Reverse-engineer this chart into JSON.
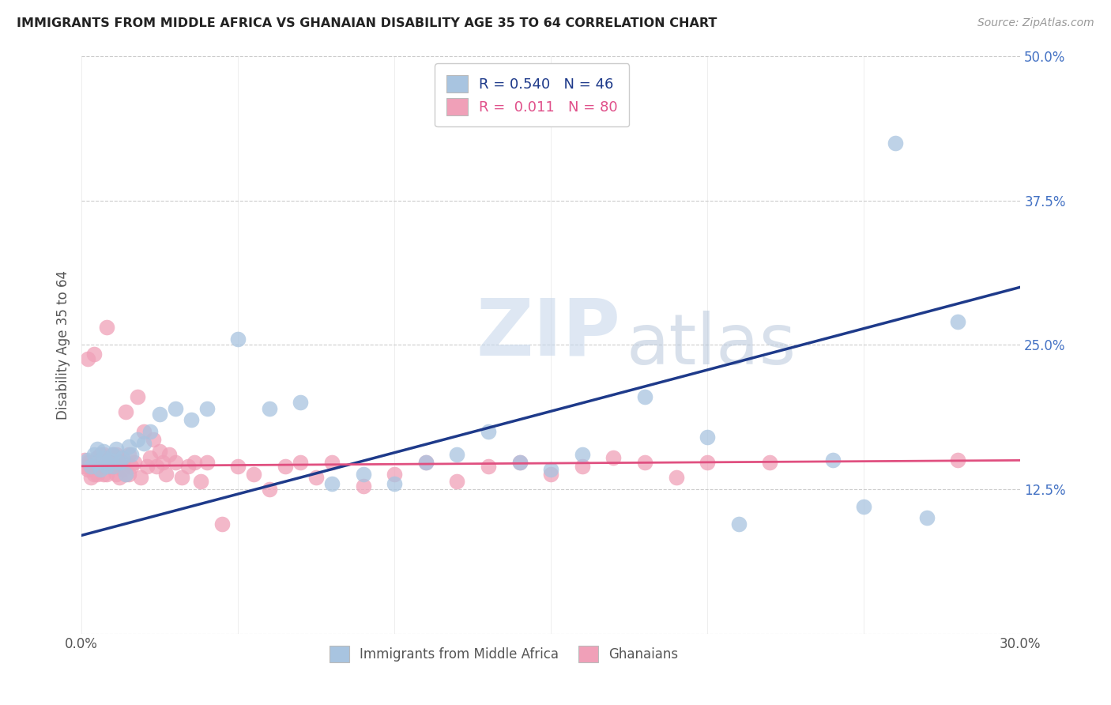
{
  "title": "IMMIGRANTS FROM MIDDLE AFRICA VS GHANAIAN DISABILITY AGE 35 TO 64 CORRELATION CHART",
  "source": "Source: ZipAtlas.com",
  "ylabel": "Disability Age 35 to 64",
  "xlim": [
    0.0,
    0.3
  ],
  "ylim": [
    0.0,
    0.5
  ],
  "xticks": [
    0.0,
    0.05,
    0.1,
    0.15,
    0.2,
    0.25,
    0.3
  ],
  "xticklabels": [
    "0.0%",
    "",
    "",
    "",
    "",
    "",
    "30.0%"
  ],
  "yticks": [
    0.0,
    0.125,
    0.25,
    0.375,
    0.5
  ],
  "yticklabels": [
    "",
    "12.5%",
    "25.0%",
    "37.5%",
    "50.0%"
  ],
  "blue_R": 0.54,
  "blue_N": 46,
  "pink_R": 0.011,
  "pink_N": 80,
  "blue_color": "#a8c4e0",
  "pink_color": "#f0a0b8",
  "blue_line_color": "#1e3a8a",
  "pink_line_color": "#e05080",
  "watermark_zip": "ZIP",
  "watermark_atlas": "atlas",
  "blue_line_start_y": 0.085,
  "blue_line_end_y": 0.3,
  "pink_line_start_y": 0.145,
  "pink_line_end_y": 0.15,
  "blue_scatter_x": [
    0.002,
    0.003,
    0.004,
    0.005,
    0.005,
    0.006,
    0.007,
    0.007,
    0.008,
    0.008,
    0.009,
    0.01,
    0.01,
    0.011,
    0.012,
    0.013,
    0.014,
    0.015,
    0.016,
    0.018,
    0.02,
    0.022,
    0.025,
    0.03,
    0.035,
    0.04,
    0.05,
    0.06,
    0.07,
    0.08,
    0.09,
    0.1,
    0.11,
    0.12,
    0.13,
    0.14,
    0.15,
    0.16,
    0.18,
    0.2,
    0.21,
    0.24,
    0.25,
    0.26,
    0.27,
    0.28
  ],
  "blue_scatter_y": [
    0.15,
    0.145,
    0.155,
    0.148,
    0.16,
    0.142,
    0.152,
    0.158,
    0.145,
    0.148,
    0.15,
    0.155,
    0.145,
    0.16,
    0.148,
    0.152,
    0.138,
    0.162,
    0.155,
    0.168,
    0.165,
    0.175,
    0.19,
    0.195,
    0.185,
    0.195,
    0.255,
    0.195,
    0.2,
    0.13,
    0.138,
    0.13,
    0.148,
    0.155,
    0.175,
    0.148,
    0.142,
    0.155,
    0.205,
    0.17,
    0.095,
    0.15,
    0.11,
    0.425,
    0.1,
    0.27
  ],
  "pink_scatter_x": [
    0.001,
    0.001,
    0.002,
    0.002,
    0.002,
    0.003,
    0.003,
    0.003,
    0.004,
    0.004,
    0.004,
    0.005,
    0.005,
    0.005,
    0.006,
    0.006,
    0.006,
    0.007,
    0.007,
    0.007,
    0.008,
    0.008,
    0.008,
    0.009,
    0.009,
    0.009,
    0.01,
    0.01,
    0.01,
    0.011,
    0.011,
    0.012,
    0.012,
    0.013,
    0.013,
    0.014,
    0.014,
    0.015,
    0.015,
    0.016,
    0.017,
    0.018,
    0.019,
    0.02,
    0.021,
    0.022,
    0.023,
    0.024,
    0.025,
    0.026,
    0.027,
    0.028,
    0.03,
    0.032,
    0.034,
    0.036,
    0.038,
    0.04,
    0.045,
    0.05,
    0.055,
    0.06,
    0.065,
    0.07,
    0.075,
    0.08,
    0.09,
    0.1,
    0.11,
    0.12,
    0.13,
    0.14,
    0.15,
    0.16,
    0.17,
    0.18,
    0.19,
    0.2,
    0.22,
    0.28
  ],
  "pink_scatter_y": [
    0.15,
    0.145,
    0.148,
    0.142,
    0.238,
    0.135,
    0.145,
    0.148,
    0.138,
    0.145,
    0.242,
    0.15,
    0.138,
    0.152,
    0.145,
    0.155,
    0.148,
    0.138,
    0.155,
    0.145,
    0.148,
    0.138,
    0.265,
    0.145,
    0.152,
    0.145,
    0.155,
    0.145,
    0.148,
    0.138,
    0.155,
    0.148,
    0.135,
    0.142,
    0.148,
    0.138,
    0.192,
    0.155,
    0.138,
    0.145,
    0.148,
    0.205,
    0.135,
    0.175,
    0.145,
    0.152,
    0.168,
    0.145,
    0.158,
    0.148,
    0.138,
    0.155,
    0.148,
    0.135,
    0.145,
    0.148,
    0.132,
    0.148,
    0.095,
    0.145,
    0.138,
    0.125,
    0.145,
    0.148,
    0.135,
    0.148,
    0.128,
    0.138,
    0.148,
    0.132,
    0.145,
    0.148,
    0.138,
    0.145,
    0.152,
    0.148,
    0.135,
    0.148,
    0.148,
    0.15
  ]
}
